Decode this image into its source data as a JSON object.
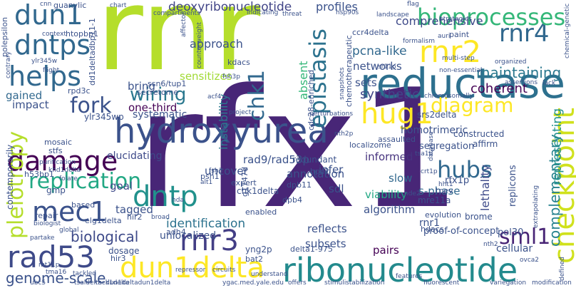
{
  "words": [
    {
      "text": "rnr",
      "color": "#b5de2b"
    },
    {
      "text": "rfx1",
      "color": "#482677"
    },
    {
      "text": "reductase",
      "color": "#2d708e"
    },
    {
      "text": "ribonucleotide",
      "color": "#238a8d"
    },
    {
      "text": "checkpoint",
      "color": "#d0e11c"
    },
    {
      "text": "hydroxyurea",
      "color": "#3b528b"
    },
    {
      "text": "damage",
      "color": "#440154"
    },
    {
      "text": "dun1delta",
      "color": "#fde725"
    },
    {
      "text": "dun1",
      "color": "#31688e"
    },
    {
      "text": "dntps",
      "color": "#31688e"
    },
    {
      "text": "dntp",
      "color": "#21918c"
    },
    {
      "text": "helps",
      "color": "#31688e"
    },
    {
      "text": "mec1",
      "color": "#3b528b"
    },
    {
      "text": "rad53",
      "color": "#3e4a89"
    },
    {
      "text": "rnr2",
      "color": "#fde725"
    },
    {
      "text": "rnr3",
      "color": "#433e85"
    },
    {
      "text": "rnr4",
      "color": "#31688e"
    },
    {
      "text": "hug1",
      "color": "#fde725"
    },
    {
      "text": "bioprocesses",
      "color": "#35b779"
    },
    {
      "text": "epistasis",
      "color": "#2c728e"
    },
    {
      "text": "pleiotropy",
      "color": "#b5de2b"
    },
    {
      "text": "replication",
      "color": "#22a884"
    },
    {
      "text": "fork",
      "color": "#3b528b"
    },
    {
      "text": "wiring",
      "color": "#2a788e"
    },
    {
      "text": "diagram",
      "color": "#fde725"
    },
    {
      "text": "chk1",
      "color": "#31688e"
    },
    {
      "text": "hubs",
      "color": "#31688e"
    },
    {
      "text": "deoxyribonucleotide",
      "color": "#414487"
    },
    {
      "text": "complementary",
      "color": "#26828e"
    },
    {
      "text": "sml1",
      "color": "#482475"
    },
    {
      "text": "genome-scale",
      "color": "#3b528b"
    },
    {
      "text": "biological",
      "color": "#3e4a89"
    },
    {
      "text": "identification",
      "color": "#2c728e"
    },
    {
      "text": "pcna-like",
      "color": "#31688e"
    },
    {
      "text": "networks",
      "color": "#3b528b"
    },
    {
      "text": "comprehensive",
      "color": "#3e4a89"
    },
    {
      "text": "profiles",
      "color": "#3b528b"
    },
    {
      "text": "maintaining",
      "color": "#2a788e"
    },
    {
      "text": "coherent",
      "color": "#440154"
    },
    {
      "text": "synthetic",
      "color": "#404688"
    },
    {
      "text": "representing",
      "color": "#21918c"
    },
    {
      "text": "lethality",
      "color": "#3e4a89"
    },
    {
      "text": "approach",
      "color": "#3b528b"
    },
    {
      "text": "sensitizes",
      "color": "#a2da37"
    },
    {
      "text": "one-third",
      "color": "#440154"
    },
    {
      "text": "systematic",
      "color": "#3b528b"
    },
    {
      "text": "elucidating",
      "color": "#3e4a89"
    },
    {
      "text": "instability",
      "color": "#2a788e"
    },
    {
      "text": "absent",
      "color": "#35b779"
    },
    {
      "text": "bring",
      "color": "#3b528b"
    },
    {
      "text": "sets",
      "color": "#3b528b"
    },
    {
      "text": "informed",
      "color": "#46337e"
    },
    {
      "text": "infer",
      "color": "#3b528b"
    },
    {
      "text": "slow",
      "color": "#31688e"
    },
    {
      "text": "s-phase",
      "color": "#31688e"
    },
    {
      "text": "annotation",
      "color": "#3b528b"
    },
    {
      "text": "viability",
      "color": "#22a884"
    },
    {
      "text": "algorithm",
      "color": "#3b528b"
    },
    {
      "text": "reflects",
      "color": "#3b528b"
    },
    {
      "text": "subsets",
      "color": "#3b528b"
    },
    {
      "text": "pairs",
      "color": "#440154"
    },
    {
      "text": "impact",
      "color": "#3b528b"
    },
    {
      "text": "gained",
      "color": "#31688e"
    },
    {
      "text": "tagged",
      "color": "#3b528b"
    },
    {
      "text": "goal",
      "color": "#3e4a89"
    },
    {
      "text": "uncover",
      "color": "#3b528b"
    },
    {
      "text": "rad9/rad53p",
      "color": "#3b528b"
    },
    {
      "text": "segregation",
      "color": "#3b528b"
    },
    {
      "text": "homotrimeric",
      "color": "#3b528b"
    },
    {
      "text": "sdl",
      "color": "#3b528b"
    },
    {
      "text": "replicons",
      "color": "#3b528b"
    },
    {
      "text": "rfx1p",
      "color": "#3b528b"
    },
    {
      "text": "rnr1",
      "color": "#3b528b"
    },
    {
      "text": "unlocalized",
      "color": "#3b528b"
    },
    {
      "text": "mosaic",
      "color": "#3b528b"
    },
    {
      "text": "stfs",
      "color": "#3b528b"
    },
    {
      "text": "h53bp1",
      "color": "#3b528b"
    },
    {
      "text": "ylr345wp",
      "color": "#3b528b"
    },
    {
      "text": "redundant",
      "color": "#3b528b"
    },
    {
      "text": "cdc28-enriched",
      "color": "#3b528b"
    },
    {
      "text": "chemotherapeutic",
      "color": "#3b528b"
    },
    {
      "text": "secretome",
      "color": "#3b528b"
    },
    {
      "text": "ssn6/tup1",
      "color": "#3b528b"
    },
    {
      "text": "kdacs",
      "color": "#3b528b"
    },
    {
      "text": "htopbp1",
      "color": "#3b528b"
    },
    {
      "text": "ccr4delta",
      "color": "#3b528b"
    },
    {
      "text": "paint",
      "color": "#3b528b"
    },
    {
      "text": "srs2delta",
      "color": "#3b528b"
    },
    {
      "text": "assaulted",
      "color": "#3b528b"
    },
    {
      "text": "localizome",
      "color": "#3b528b"
    },
    {
      "text": "constructed",
      "color": "#3b528b"
    },
    {
      "text": "affirm",
      "color": "#3b528b"
    },
    {
      "text": "elg1delta",
      "color": "#3b528b"
    },
    {
      "text": "chk1delta",
      "color": "#3b528b"
    },
    {
      "text": "dpb4",
      "color": "#3b528b"
    },
    {
      "text": "dpb11",
      "color": "#3b528b"
    },
    {
      "text": "mre11a",
      "color": "#3b528b"
    },
    {
      "text": "hdacs",
      "color": "#3b528b"
    },
    {
      "text": "brome",
      "color": "#3b528b"
    },
    {
      "text": "proof-of-concept",
      "color": "#3b528b"
    },
    {
      "text": "pol30",
      "color": "#3b528b"
    },
    {
      "text": "cellular",
      "color": "#3b528b"
    },
    {
      "text": "delta1-975",
      "color": "#3b528b"
    },
    {
      "text": "yng2p",
      "color": "#3b528b"
    },
    {
      "text": "adh4",
      "color": "#3b528b"
    },
    {
      "text": "bat2",
      "color": "#3b528b"
    },
    {
      "text": "hir3",
      "color": "#3b528b"
    },
    {
      "text": "dosage",
      "color": "#3b528b"
    },
    {
      "text": "hir2",
      "color": "#3b528b"
    },
    {
      "text": "repair",
      "color": "#3b528b"
    },
    {
      "text": "based",
      "color": "#3b528b"
    },
    {
      "text": "psh1",
      "color": "#3b528b"
    },
    {
      "text": "expert",
      "color": "#3b528b"
    },
    {
      "text": "hpc2",
      "color": "#3b528b"
    },
    {
      "text": "tpev",
      "color": "#3b528b"
    },
    {
      "text": "evolution",
      "color": "#3b528b"
    },
    {
      "text": "enabled",
      "color": "#3b528b"
    },
    {
      "text": "contemporarily",
      "color": "#3b528b"
    },
    {
      "text": "polepsilon",
      "color": "#3b528b"
    },
    {
      "text": "guanylic",
      "color": "#3b528b"
    },
    {
      "text": "rpd3c",
      "color": "#3b528b"
    },
    {
      "text": "counterweight",
      "color": "#3b528b"
    },
    {
      "text": "fsh3p",
      "color": "#3b528b"
    },
    {
      "text": "acf4",
      "color": "#3b528b"
    },
    {
      "text": "nth2p",
      "color": "#3b528b"
    },
    {
      "text": "hsp90s",
      "color": "#3b528b"
    },
    {
      "text": "landscape",
      "color": "#3b528b"
    },
    {
      "text": "strategies",
      "color": "#3b528b"
    },
    {
      "text": "threat",
      "color": "#3b528b"
    },
    {
      "text": "indicating",
      "color": "#3b528b"
    },
    {
      "text": "compartments",
      "color": "#3b528b"
    },
    {
      "text": "chart",
      "color": "#3b528b"
    },
    {
      "text": "context",
      "color": "#3b528b"
    },
    {
      "text": "flight",
      "color": "#3b528b"
    },
    {
      "text": "ylr345w",
      "color": "#3b528b"
    },
    {
      "text": "contrary",
      "color": "#3b528b"
    },
    {
      "text": "affector",
      "color": "#3b528b"
    },
    {
      "text": "formalism",
      "color": "#3b528b"
    },
    {
      "text": "auri",
      "color": "#3b528b"
    },
    {
      "text": "chromosomally",
      "color": "#3b528b"
    },
    {
      "text": "assertions",
      "color": "#3b528b"
    },
    {
      "text": "non-essential",
      "color": "#3b528b"
    },
    {
      "text": "chemical-genetic",
      "color": "#3b528b"
    },
    {
      "text": "multi-step",
      "color": "#3b528b"
    },
    {
      "text": "organized",
      "color": "#3b528b"
    },
    {
      "text": "perturbations",
      "color": "#3b528b"
    },
    {
      "text": "snapshots",
      "color": "#3b528b"
    },
    {
      "text": "sr11p",
      "color": "#3b528b"
    },
    {
      "text": "project",
      "color": "#3b528b"
    },
    {
      "text": "stimuli",
      "color": "#3b528b"
    },
    {
      "text": "offers",
      "color": "#3b528b"
    },
    {
      "text": "stabilization",
      "color": "#3b528b"
    },
    {
      "text": "fluorescent",
      "color": "#3b528b"
    },
    {
      "text": "variegation",
      "color": "#3b528b"
    },
    {
      "text": "modification",
      "color": "#3b528b"
    },
    {
      "text": "ygac.med.yale.edu",
      "color": "#3b528b"
    },
    {
      "text": "features",
      "color": "#3b528b"
    },
    {
      "text": "understand",
      "color": "#3b528b"
    },
    {
      "text": "circuits",
      "color": "#3b528b"
    },
    {
      "text": "repressor",
      "color": "#3b528b"
    },
    {
      "text": "tsaldelta",
      "color": "#3b528b"
    },
    {
      "text": "dun1deltadun1delta",
      "color": "#3b528b"
    },
    {
      "text": "mck1delta",
      "color": "#3b528b"
    },
    {
      "text": "tackled",
      "color": "#3b528b"
    },
    {
      "text": "broad",
      "color": "#3b528b"
    },
    {
      "text": "global",
      "color": "#3b528b"
    },
    {
      "text": "partake",
      "color": "#3b528b"
    },
    {
      "text": "biologist",
      "color": "#3b528b"
    },
    {
      "text": "gmp",
      "color": "#3b528b"
    },
    {
      "text": "folate",
      "color": "#3b528b"
    },
    {
      "text": "purification",
      "color": "#3b528b"
    },
    {
      "text": "khd1delta",
      "color": "#3b528b"
    },
    {
      "text": "mt11p",
      "color": "#3b528b"
    },
    {
      "text": "ubc5",
      "color": "#3b528b"
    },
    {
      "text": "tma16",
      "color": "#3b528b"
    },
    {
      "text": "ovca2",
      "color": "#3b528b"
    },
    {
      "text": "nth2",
      "color": "#3b528b"
    },
    {
      "text": "alt1",
      "color": "#3b528b"
    },
    {
      "text": "crt1p",
      "color": "#3b528b"
    },
    {
      "text": "nde2",
      "color": "#3b528b"
    },
    {
      "text": "g1747d",
      "color": "#3b528b"
    },
    {
      "text": "fsh3",
      "color": "#3b528b"
    },
    {
      "text": "hda",
      "color": "#3b528b"
    },
    {
      "text": "hht1",
      "color": "#3b528b"
    },
    {
      "text": "extrapolating",
      "color": "#3b528b"
    },
    {
      "text": "tsa1p",
      "color": "#3b528b"
    },
    {
      "text": "database",
      "color": "#3b528b"
    },
    {
      "text": "cnn",
      "color": "#3b528b"
    },
    {
      "text": "flag",
      "color": "#3b528b"
    },
    {
      "text": "lack",
      "color": "#3b528b"
    },
    {
      "text": "defined",
      "color": "#3b528b"
    },
    {
      "text": "dd1deltadbp11-1",
      "color": "#3b528b"
    }
  ]
}
